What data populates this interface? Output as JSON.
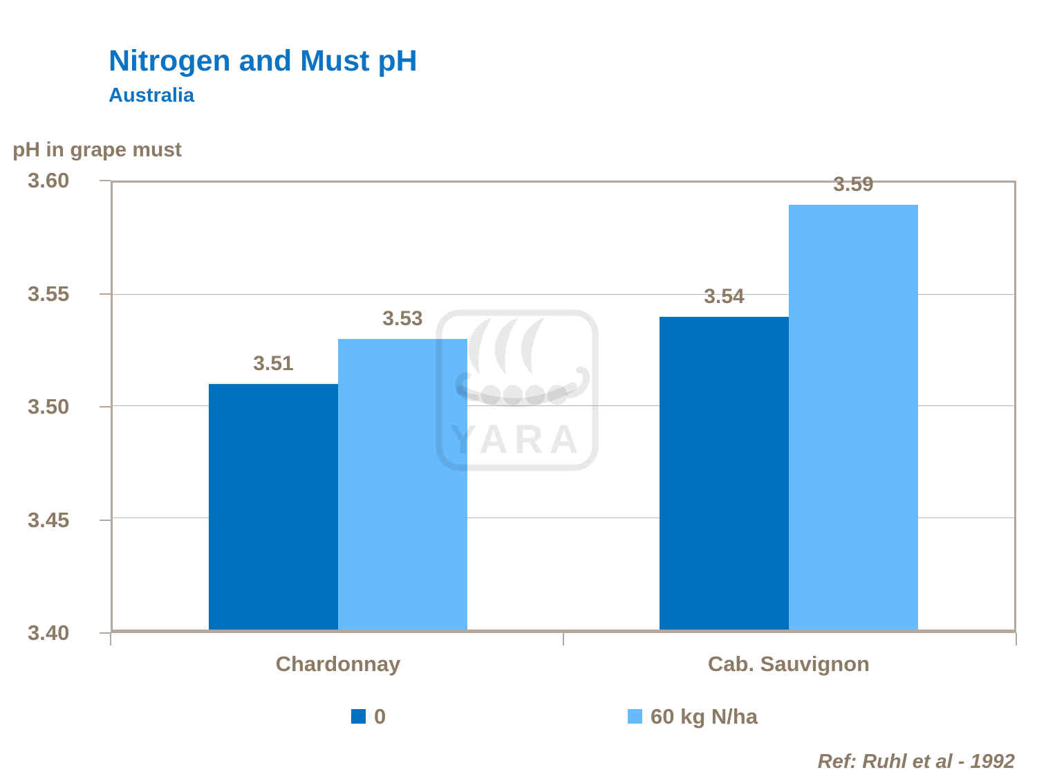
{
  "header": {
    "title": "Nitrogen and Must pH",
    "subtitle": "Australia"
  },
  "y_axis_title": "pH in grape must",
  "reference_text": "Ref: Ruhl et al - 1992",
  "watermark": {
    "icon": "yara-viking-ship-logo",
    "text": "YARA"
  },
  "colors": {
    "title_blue": "#0C73C4",
    "series_dark_blue": "#0070C0",
    "series_light_blue": "#66BBFC",
    "text_brown": "#8A7A66",
    "axis_border": "#B2A89C",
    "gridline": "#BFB6AB"
  },
  "chart_data": {
    "type": "bar",
    "title": "Nitrogen and Must pH",
    "subtitle": "Australia",
    "ylabel": "pH in grape must",
    "xlabel": "",
    "categories": [
      "Chardonnay",
      "Cab. Sauvignon"
    ],
    "series": [
      {
        "name": "0",
        "color": "#0070C0",
        "values": [
          3.51,
          3.54
        ]
      },
      {
        "name": "60 kg N/ha",
        "color": "#66BBFC",
        "values": [
          3.53,
          3.59
        ]
      }
    ],
    "ylim": [
      3.4,
      3.6
    ],
    "yticks": [
      3.4,
      3.45,
      3.5,
      3.55,
      3.6
    ],
    "value_label_decimals": 2,
    "grid": true,
    "legend_position": "bottom",
    "annotation": "Ref: Ruhl et al - 1992"
  }
}
